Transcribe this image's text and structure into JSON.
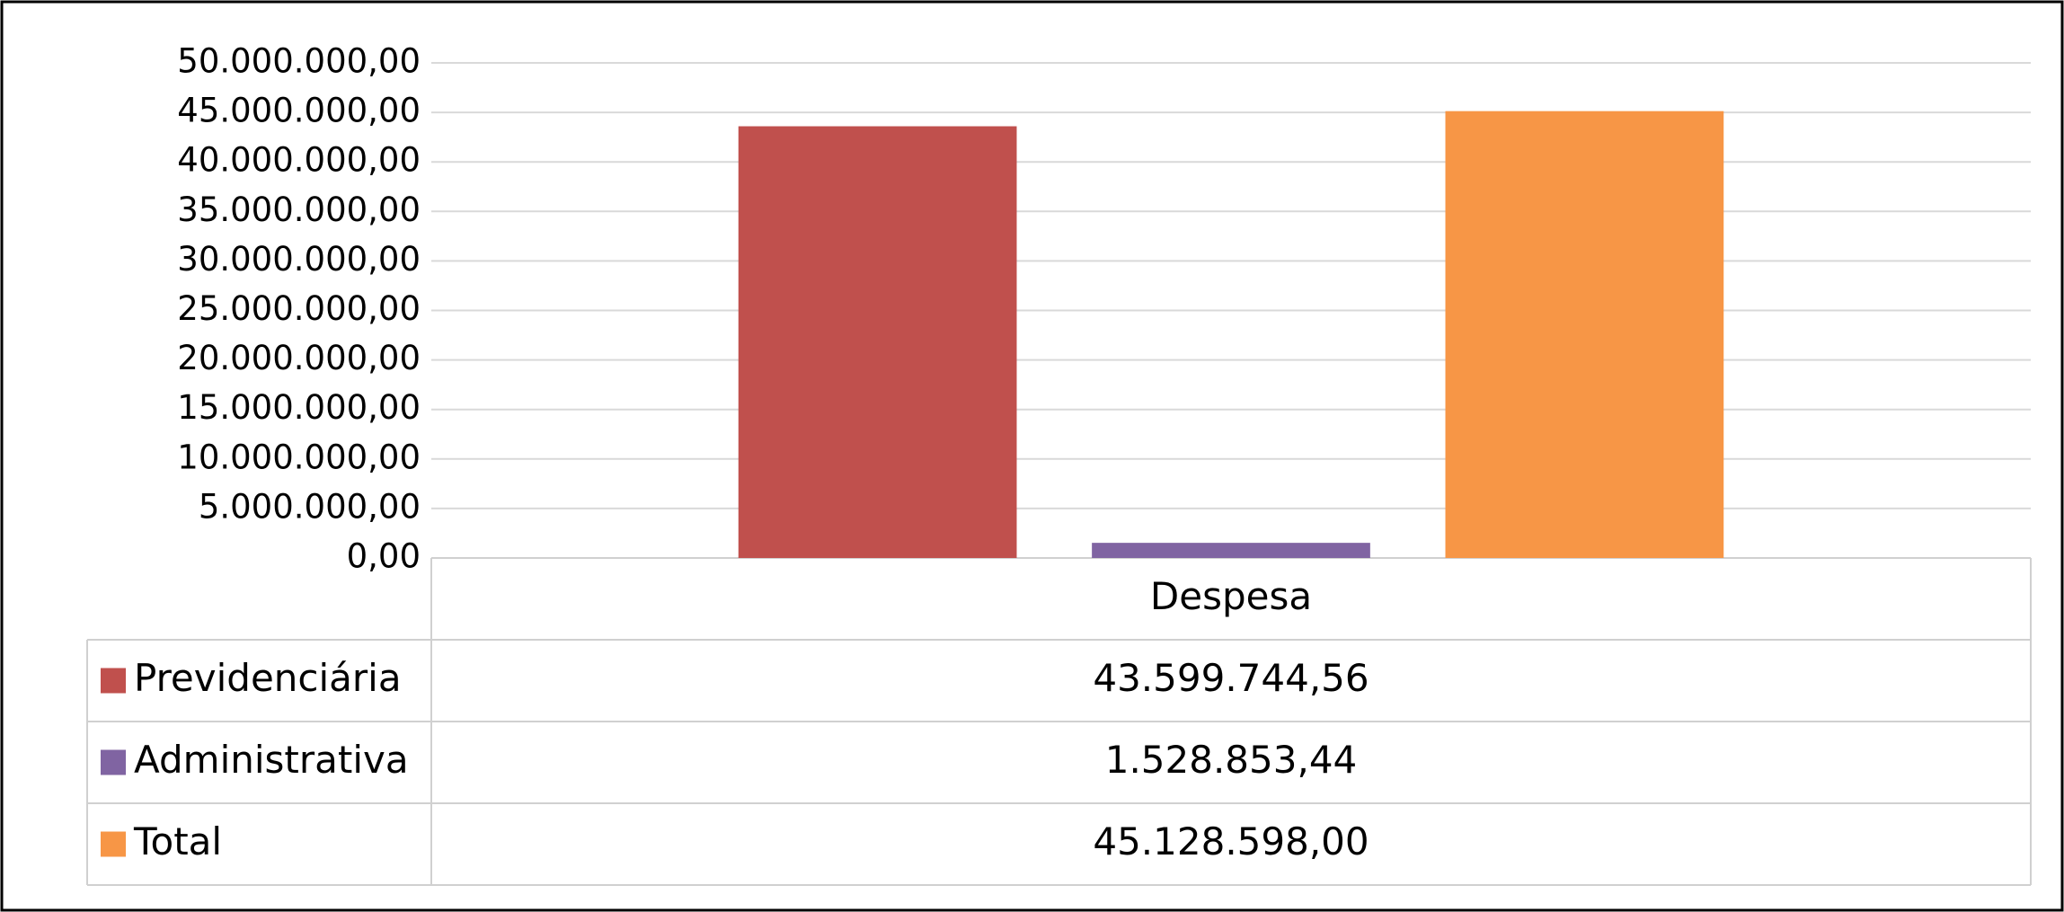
{
  "chart_data": {
    "type": "bar",
    "categories": [
      "Despesa"
    ],
    "series": [
      {
        "name": "Previdenciária",
        "color": "#c0504d",
        "values": [
          43599744.56
        ],
        "value_labels": [
          "43.599.744,56"
        ]
      },
      {
        "name": "Administrativa",
        "color": "#8064a2",
        "values": [
          1528853.44
        ],
        "value_labels": [
          "1.528.853,44"
        ]
      },
      {
        "name": "Total",
        "color": "#f79646",
        "values": [
          45128598.0
        ],
        "value_labels": [
          "45.128.598,00"
        ]
      }
    ],
    "ylim": [
      0,
      50000000
    ],
    "yticks": [
      {
        "value": 0,
        "label": "0,00"
      },
      {
        "value": 5000000,
        "label": "5.000.000,00"
      },
      {
        "value": 10000000,
        "label": "10.000.000,00"
      },
      {
        "value": 15000000,
        "label": "15.000.000,00"
      },
      {
        "value": 20000000,
        "label": "20.000.000,00"
      },
      {
        "value": 25000000,
        "label": "25.000.000,00"
      },
      {
        "value": 30000000,
        "label": "30.000.000,00"
      },
      {
        "value": 35000000,
        "label": "35.000.000,00"
      },
      {
        "value": 40000000,
        "label": "40.000.000,00"
      },
      {
        "value": 45000000,
        "label": "45.000.000,00"
      },
      {
        "value": 50000000,
        "label": "50.000.000,00"
      }
    ],
    "grid": true,
    "legend": "table"
  }
}
